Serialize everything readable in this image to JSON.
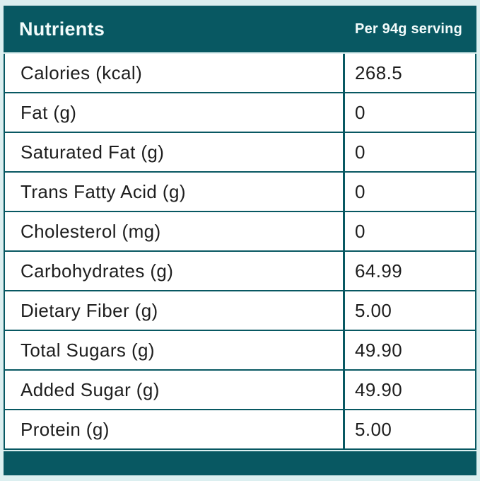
{
  "colors": {
    "teal": "#085862",
    "page_bg": "#dceff0",
    "row_bg": "#ffffff",
    "text": "#1e1e1e",
    "header_text": "#f2fbfb"
  },
  "header": {
    "title": "Nutrients",
    "serving": "Per 94g serving"
  },
  "table": {
    "rows": [
      {
        "label": "Calories (kcal)",
        "value": "268.5"
      },
      {
        "label": "Fat (g)",
        "value": "0"
      },
      {
        "label": "Saturated Fat (g)",
        "value": "0"
      },
      {
        "label": "Trans Fatty Acid (g)",
        "value": "0"
      },
      {
        "label": "Cholesterol (mg)",
        "value": "0"
      },
      {
        "label": "Carbohydrates (g)",
        "value": "64.99"
      },
      {
        "label": "Dietary Fiber (g)",
        "value": "5.00"
      },
      {
        "label": "Total Sugars (g)",
        "value": "49.90"
      },
      {
        "label": "Added Sugar (g)",
        "value": "49.90"
      },
      {
        "label": "Protein (g)",
        "value": "5.00"
      }
    ]
  }
}
